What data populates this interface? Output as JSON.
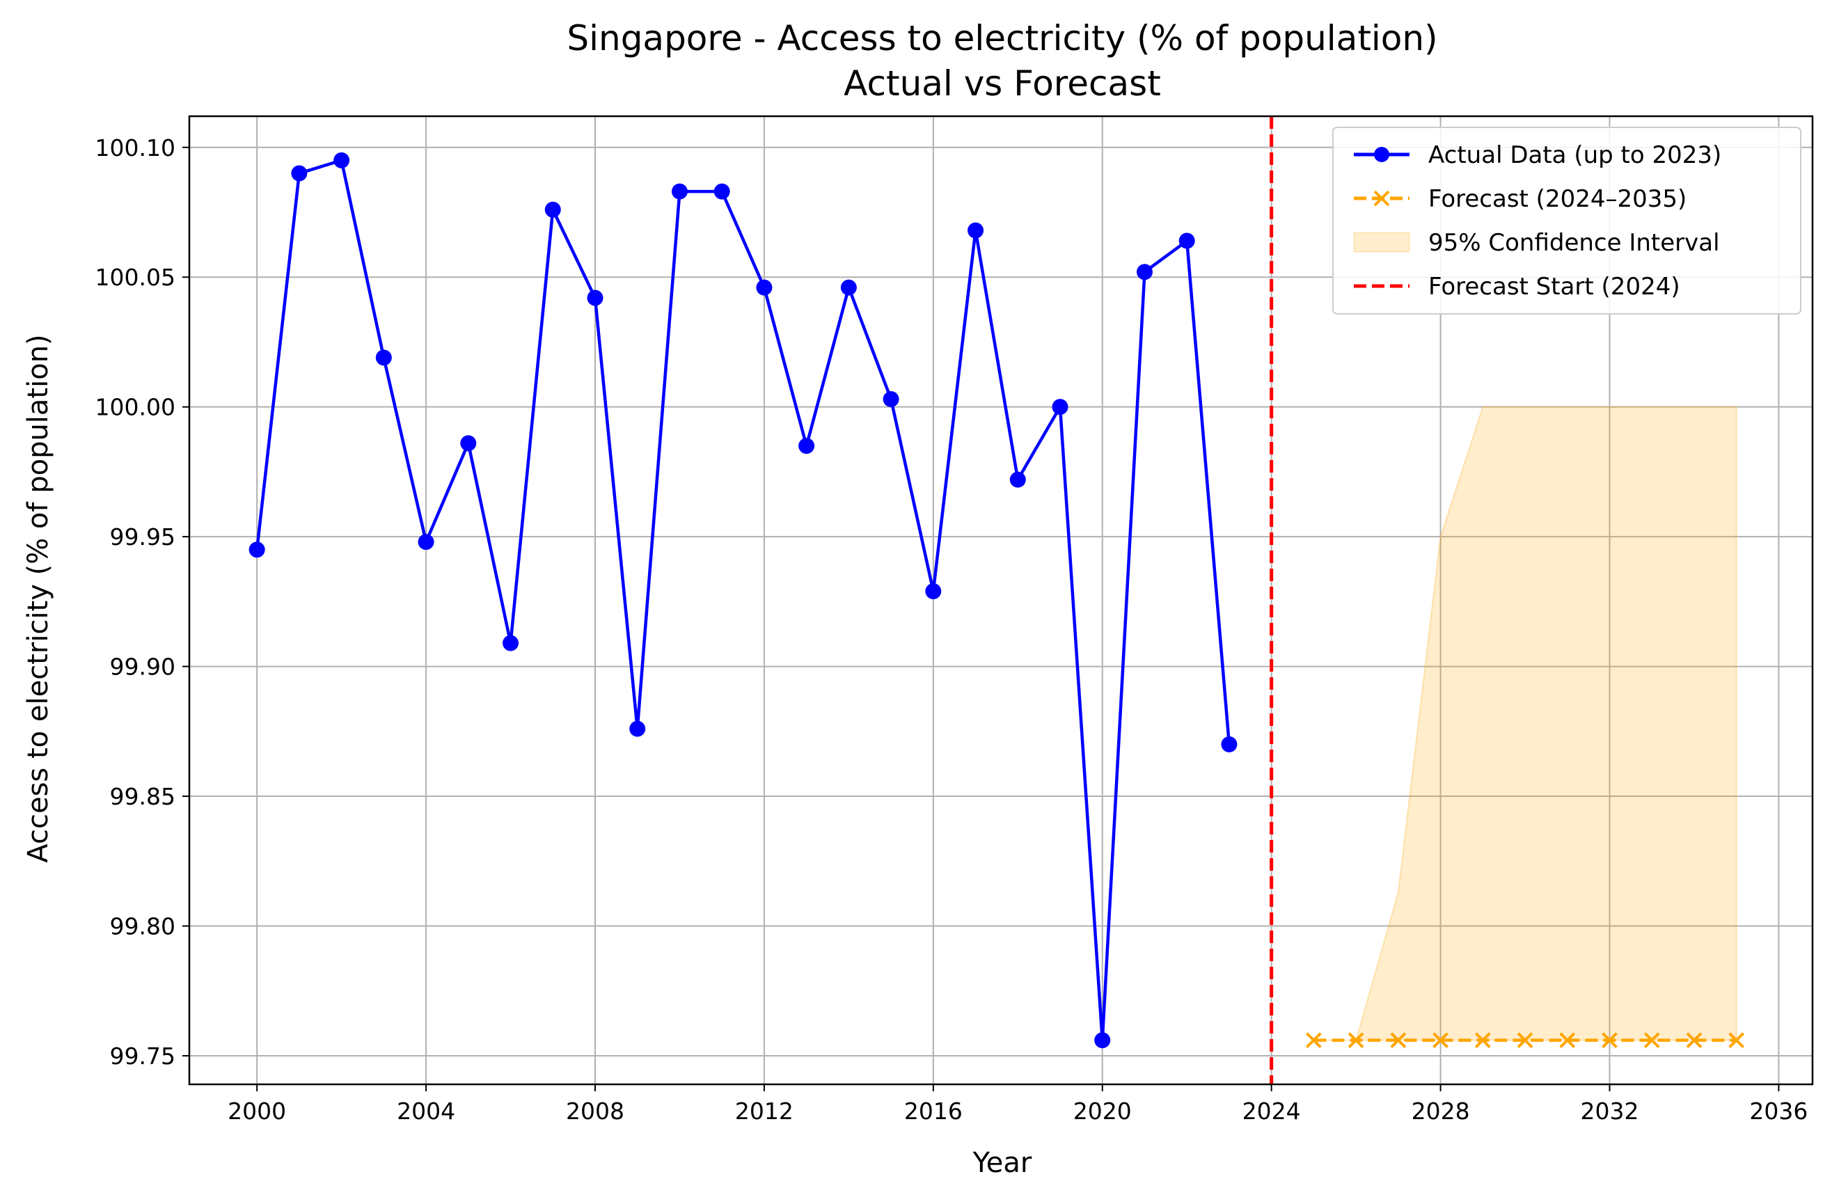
{
  "chart_data": {
    "type": "line",
    "title": "Singapore - Access to electricity (% of population)",
    "subtitle": "Actual vs Forecast",
    "xlabel": "Year",
    "ylabel": "Access to electricity (% of population)",
    "xlim": [
      1998.4,
      2036.8
    ],
    "ylim": [
      99.739,
      100.112
    ],
    "xticks": [
      2000,
      2004,
      2008,
      2012,
      2016,
      2020,
      2024,
      2028,
      2032,
      2036
    ],
    "yticks": [
      99.75,
      99.8,
      99.85,
      99.9,
      99.95,
      100.0,
      100.05,
      100.1
    ],
    "ytick_labels": [
      "99.75",
      "99.80",
      "99.85",
      "99.90",
      "99.95",
      "100.00",
      "100.05",
      "100.10"
    ],
    "grid": true,
    "legend_position": "top-right",
    "series": [
      {
        "name": "Actual Data (up to 2023)",
        "style": "solid-line-circle-markers",
        "color": "#0000ff",
        "x": [
          2000,
          2001,
          2002,
          2003,
          2004,
          2005,
          2006,
          2007,
          2008,
          2009,
          2010,
          2011,
          2012,
          2013,
          2014,
          2015,
          2016,
          2017,
          2018,
          2019,
          2020,
          2021,
          2022,
          2023
        ],
        "y": [
          99.945,
          100.09,
          100.095,
          100.019,
          99.948,
          99.986,
          99.909,
          100.076,
          100.042,
          99.876,
          100.083,
          100.083,
          100.046,
          99.985,
          100.046,
          100.003,
          99.929,
          100.068,
          99.972,
          100.0,
          99.756,
          100.052,
          100.064,
          99.87
        ]
      },
      {
        "name": "Forecast (2024–2035)",
        "style": "dashed-line-x-markers",
        "color": "#ffa500",
        "x": [
          2025,
          2026,
          2027,
          2028,
          2029,
          2030,
          2031,
          2032,
          2033,
          2034,
          2035
        ],
        "y": [
          99.756,
          99.756,
          99.756,
          99.756,
          99.756,
          99.756,
          99.756,
          99.756,
          99.756,
          99.756,
          99.756
        ]
      },
      {
        "name": "95% Confidence Interval",
        "style": "band",
        "color": "#ffa500",
        "x": [
          2025,
          2026,
          2027,
          2028,
          2029,
          2030,
          2031,
          2032,
          2033,
          2034,
          2035
        ],
        "lower": [
          99.756,
          99.756,
          99.756,
          99.756,
          99.756,
          99.756,
          99.756,
          99.756,
          99.756,
          99.756,
          99.756
        ],
        "upper": [
          99.756,
          99.756,
          99.813,
          99.95,
          100.0,
          100.0,
          100.0,
          100.0,
          100.0,
          100.0,
          100.0
        ]
      },
      {
        "name": "Forecast Start (2024)",
        "style": "vertical-dashed-line",
        "color": "#ff0000",
        "x_value": 2024
      }
    ]
  }
}
